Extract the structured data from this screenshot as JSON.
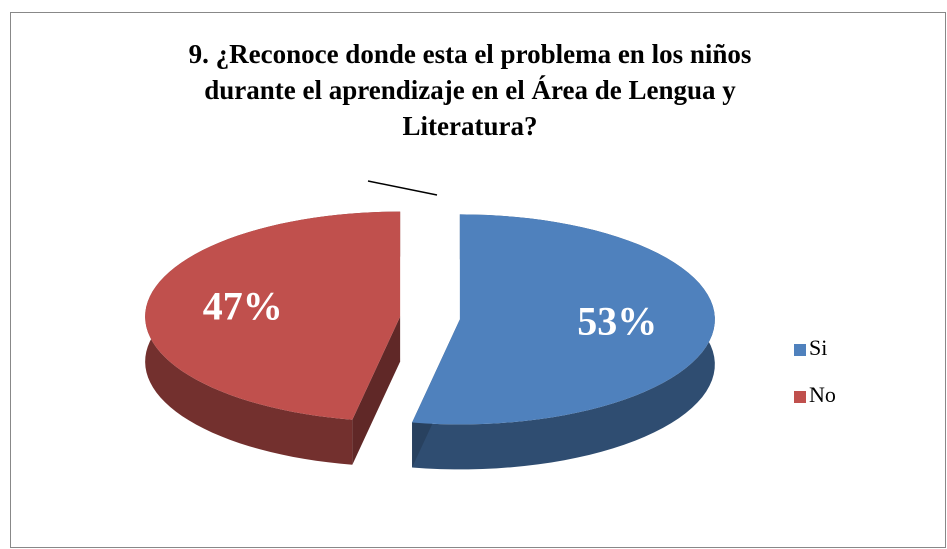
{
  "chart_data": {
    "type": "pie",
    "title": "9.     ¿Reconoce donde esta el problema en los niños durante el aprendizaje en el Área de Lengua y Literatura?",
    "categories": [
      "Si",
      "No"
    ],
    "values": [
      53,
      47
    ],
    "value_labels": [
      "53%",
      "47%"
    ],
    "colors": [
      "#4f81bd",
      "#c0504d"
    ],
    "legend": "right"
  }
}
